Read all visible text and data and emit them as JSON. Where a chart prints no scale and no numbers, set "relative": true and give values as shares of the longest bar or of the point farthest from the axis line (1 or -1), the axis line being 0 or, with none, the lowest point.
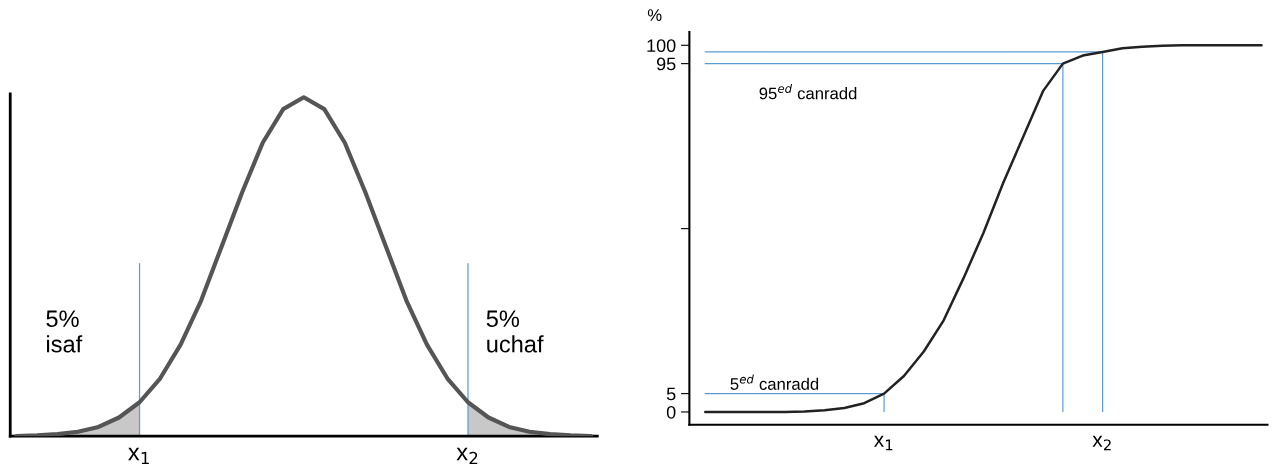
{
  "chart_data": [
    {
      "type": "line",
      "relative": true,
      "categories": [
        null,
        null,
        null,
        null,
        null,
        null,
        "x$_{1}$",
        null,
        null,
        null,
        null,
        null,
        null,
        null,
        null,
        null,
        null,
        null,
        null,
        null,
        null,
        null,
        "x$_{2}$",
        null,
        null,
        null,
        null,
        null,
        null
      ],
      "tick_labels": "x",
      "series": [
        {
          "type": "area",
          "color": "#c8c8c8",
          "values": [
            0,
            0.002,
            0.006,
            0.013,
            0.027,
            0.055,
            0.1,
            null,
            null,
            null,
            null,
            null,
            null,
            null,
            null,
            null,
            null,
            null,
            null,
            null,
            null,
            null,
            null,
            null,
            null,
            null,
            null,
            null,
            null
          ]
        },
        {
          "type": "area",
          "color": "#c8c8c8",
          "values": [
            null,
            null,
            null,
            null,
            null,
            null,
            null,
            null,
            null,
            null,
            null,
            null,
            null,
            null,
            null,
            null,
            null,
            null,
            null,
            null,
            null,
            null,
            0.1,
            0.055,
            0.027,
            0.013,
            0.006,
            0.002,
            0
          ]
        },
        {
          "color": "#555555",
          "values": [
            0,
            0.002,
            0.006,
            0.013,
            0.027,
            0.055,
            0.1,
            0.17,
            0.27,
            0.4,
            0.56,
            0.72,
            0.866,
            0.965,
            1,
            0.965,
            0.866,
            0.72,
            0.56,
            0.4,
            0.27,
            0.17,
            0.1,
            0.055,
            0.027,
            0.013,
            0.006,
            0.002,
            0
          ]
        },
        {
          "type": "bar",
          "color": "#5b9bd5",
          "values": [
            null,
            null,
            null,
            null,
            null,
            null,
            0.51,
            null,
            null,
            null,
            null,
            null,
            null,
            null,
            null,
            null,
            null,
            null,
            null,
            null,
            null,
            null,
            0.51,
            null,
            null,
            null,
            null,
            null,
            null
          ]
        }
      ],
      "annotations": [
        "5%\nisaf",
        "5%\nuchaf"
      ]
    },
    {
      "type": "line",
      "ylabel": "%",
      "ylim": [
        -3.5,
        103.6
      ],
      "yticks": [
        0,
        5,
        {
          "value": 50,
          "label": null
        },
        95,
        100
      ],
      "categories": [
        null,
        null,
        null,
        null,
        null,
        null,
        null,
        null,
        null,
        "x$_{1}$",
        null,
        null,
        null,
        null,
        null,
        null,
        null,
        null,
        null,
        null,
        "x$_{2}$",
        null,
        null,
        null,
        null,
        null,
        null,
        null,
        null
      ],
      "series": [
        {
          "type": "line",
          "color": "#5b9bd5",
          "values": [
            5,
            5,
            5,
            5,
            5,
            5,
            5,
            5,
            5,
            5,
            null,
            null,
            null,
            null,
            null,
            null,
            null,
            null,
            null,
            null,
            null,
            null,
            null,
            null,
            null,
            null,
            null,
            null,
            null
          ]
        },
        {
          "type": "line",
          "color": "#5b9bd5",
          "values": [
            95,
            95,
            95,
            95,
            95,
            95,
            95,
            95,
            95,
            95,
            95,
            95,
            95,
            95,
            95,
            95,
            95,
            95,
            95,
            null,
            null,
            null,
            null,
            null,
            null,
            null,
            null,
            null,
            null
          ]
        },
        {
          "type": "line",
          "color": "#5b9bd5",
          "values": [
            98.2,
            98.2,
            98.2,
            98.2,
            98.2,
            98.2,
            98.2,
            98.2,
            98.2,
            98.2,
            98.2,
            98.2,
            98.2,
            98.2,
            98.2,
            98.2,
            98.2,
            98.2,
            98.2,
            98.2,
            98.2,
            null,
            null,
            null,
            null,
            null,
            null,
            null,
            null
          ]
        },
        {
          "type": "bar",
          "color": "#5b9bd5",
          "values": [
            null,
            null,
            null,
            null,
            null,
            null,
            null,
            null,
            null,
            5,
            null,
            null,
            null,
            null,
            null,
            null,
            null,
            null,
            95,
            null,
            98.2,
            null,
            null,
            null,
            null,
            null,
            null,
            null,
            null
          ]
        },
        {
          "color": "#222222",
          "values": [
            0,
            0,
            0,
            0,
            0,
            0.1,
            0.5,
            1.1,
            2.4,
            5,
            9.8,
            16.5,
            25,
            36.5,
            48.8,
            62.5,
            75,
            87.5,
            95,
            97.2,
            98.2,
            99.2,
            99.6,
            99.9,
            100,
            100,
            100,
            100,
            100
          ]
        }
      ],
      "annotations": [
        "5$^{ed}$ canradd",
        "95$^{ed}$ canradd"
      ]
    }
  ]
}
